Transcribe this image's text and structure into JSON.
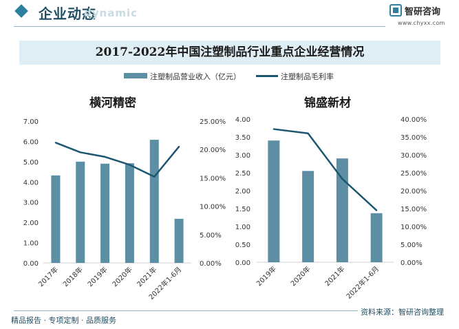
{
  "header": {
    "title": "企业动态",
    "ghost_text": "dynamic",
    "brand_name": "智研咨询",
    "brand_url": "www.chyxx.com"
  },
  "main_title": "2017-2022年中国注塑制品行业重点企业经营情况",
  "legend": {
    "bar_label": "注塑制品营业收入（亿元）",
    "line_label": "注塑制品毛利率"
  },
  "colors": {
    "bar": "#5c8fa4",
    "line": "#1c5670",
    "accent": "#2f7fa0"
  },
  "chart_data": [
    {
      "type": "bar",
      "title": "横河精密",
      "categories": [
        "2017年",
        "2018年",
        "2019年",
        "2020年",
        "2021年",
        "2022年1-6月"
      ],
      "series": [
        {
          "name": "注塑制品营业收入（亿元）",
          "axis": "left",
          "values": [
            4.32,
            5.0,
            4.9,
            4.92,
            6.08,
            2.18
          ]
        },
        {
          "name": "注塑制品毛利率",
          "type": "line",
          "axis": "right",
          "values": [
            21.2,
            19.5,
            18.7,
            17.3,
            15.2,
            20.5
          ]
        }
      ],
      "ylim": [
        0,
        7
      ],
      "y_ticks": [
        "0.00",
        "1.00",
        "2.00",
        "3.00",
        "4.00",
        "5.00",
        "6.00",
        "7.00"
      ],
      "y2lim": [
        0,
        25
      ],
      "y2_ticks": [
        "0.00%",
        "5.00%",
        "10.00%",
        "15.00%",
        "20.00%",
        "25.00%"
      ]
    },
    {
      "type": "bar",
      "title": "锦盛新材",
      "categories": [
        "2019年",
        "2020年",
        "2021年",
        "2022年1-6月"
      ],
      "series": [
        {
          "name": "注塑制品营业收入（亿元）",
          "axis": "left",
          "values": [
            3.4,
            2.55,
            2.9,
            1.37
          ]
        },
        {
          "name": "注塑制品毛利率",
          "type": "line",
          "axis": "right",
          "values": [
            37.2,
            36.0,
            23.3,
            14.5
          ]
        }
      ],
      "ylim": [
        0,
        4
      ],
      "y_ticks": [
        "0.00",
        "0.50",
        "1.00",
        "1.50",
        "2.00",
        "2.50",
        "3.00",
        "3.50",
        "4.00"
      ],
      "y2lim": [
        0,
        40
      ],
      "y2_ticks": [
        "0.00%",
        "5.00%",
        "10.00%",
        "15.00%",
        "20.00%",
        "25.00%",
        "30.00%",
        "35.00%",
        "40.00%"
      ]
    }
  ],
  "footer": {
    "left": "精品报告 · 专项定制 · 品质服务",
    "right": "资料来源：智研咨询整理"
  }
}
